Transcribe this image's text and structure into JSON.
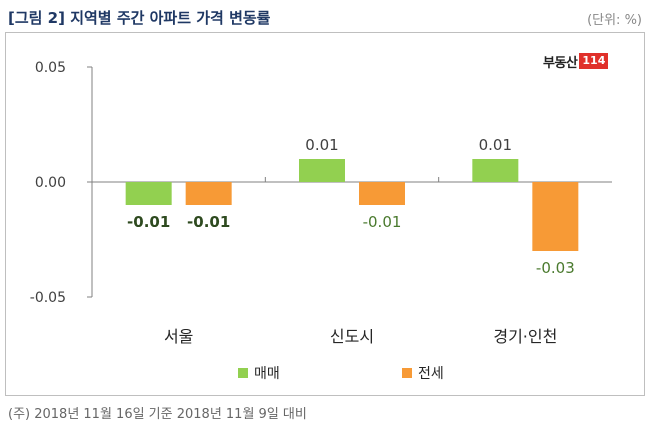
{
  "title": "[그림 2] 지역별 주간 아파트 가격 변동률",
  "unit": "(단위: %)",
  "logo": {
    "text": "부동산",
    "box": "114"
  },
  "footnote": "(주) 2018년 11월 16일 기준 2018년 11월 9일 대비",
  "colors": {
    "series1": "#92d050",
    "series2": "#f79a36",
    "title": "#1f3864"
  },
  "chart_data": {
    "type": "bar",
    "categories": [
      "서울",
      "신도시",
      "경기·인천"
    ],
    "series": [
      {
        "name": "매매",
        "values": [
          -0.01,
          0.01,
          0.01
        ],
        "labels": [
          "-0.01",
          "0.01",
          "0.01"
        ]
      },
      {
        "name": "전세",
        "values": [
          -0.01,
          -0.01,
          -0.03
        ],
        "labels": [
          "-0.01",
          "-0.01",
          "-0.03"
        ]
      }
    ],
    "yticks": [
      "0.05",
      "0.00",
      "-0.05"
    ],
    "ylim": [
      -0.05,
      0.05
    ],
    "grid": false,
    "legend": "bottom"
  }
}
